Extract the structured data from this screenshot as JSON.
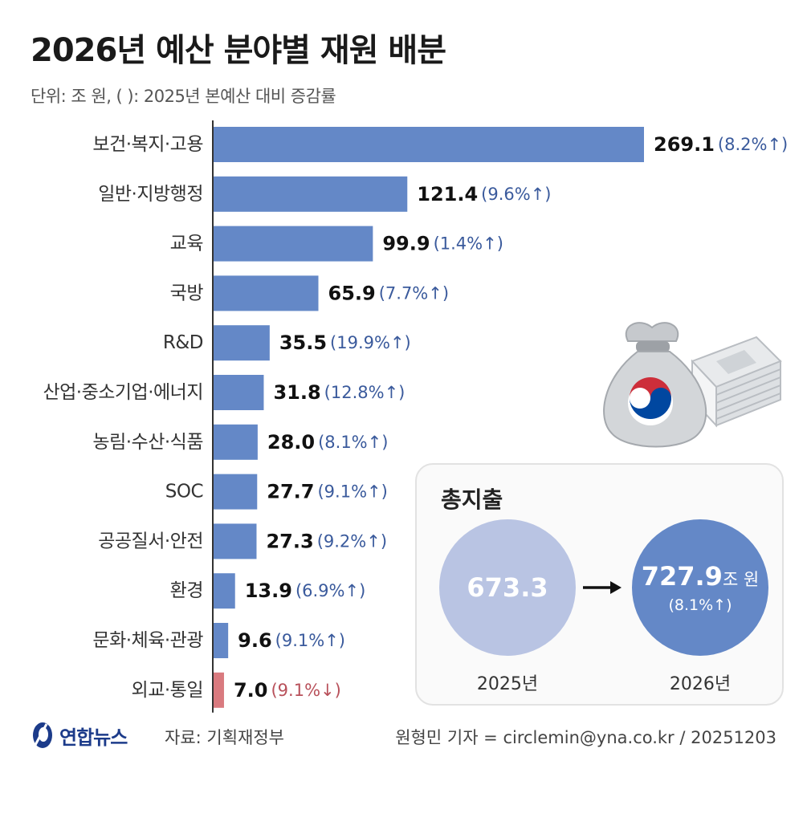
{
  "title": "2026년 예산 분야별 재원 배분",
  "unit_note": "단위: 조 원, (  ): 2025년 본예산 대비 증감률",
  "colors": {
    "bar": "#6488c7",
    "bar_negative": "#d97a7f",
    "change_up": "#3a5a9c",
    "change_down": "#b8505a"
  },
  "chart_data": {
    "type": "bar",
    "orientation": "horizontal",
    "title": "2026년 예산 분야별 재원 배분",
    "xlabel": "",
    "ylabel": "",
    "unit": "조 원",
    "categories": [
      "보건·복지·고용",
      "일반·지방행정",
      "교육",
      "국방",
      "R&D",
      "산업·중소기업·에너지",
      "농림·수산·식품",
      "SOC",
      "공공질서·안전",
      "환경",
      "문화·체육·관광",
      "외교·통일"
    ],
    "values": [
      269.1,
      121.4,
      99.9,
      65.9,
      35.5,
      31.8,
      28.0,
      27.7,
      27.3,
      13.9,
      9.6,
      7.0
    ],
    "value_labels": [
      "269.1",
      "121.4",
      "99.9",
      "65.9",
      "35.5",
      "31.8",
      "28.0",
      "27.7",
      "27.3",
      "13.9",
      "9.6",
      "7.0"
    ],
    "changes": [
      "(8.2%↑)",
      "(9.6%↑)",
      "(1.4%↑)",
      "(7.7%↑)",
      "(19.9%↑)",
      "(12.8%↑)",
      "(8.1%↑)",
      "(9.1%↑)",
      "(9.2%↑)",
      "(6.9%↑)",
      "(9.1%↑)",
      "(9.1%↓)"
    ],
    "change_direction": [
      "up",
      "up",
      "up",
      "up",
      "up",
      "up",
      "up",
      "up",
      "up",
      "up",
      "up",
      "down"
    ],
    "xlim": [
      0,
      269.1
    ]
  },
  "total": {
    "title": "총지출",
    "y2025": {
      "value": "673.3",
      "year": "2025년"
    },
    "y2026": {
      "value": "727.9",
      "unit": "조 원",
      "change": "(8.1%↑)",
      "year": "2026년"
    }
  },
  "footer": {
    "logo": "연합뉴스",
    "source": "자료: 기획재정부",
    "credit": "원형민 기자 = circlemin@yna.co.kr / 20251203"
  }
}
